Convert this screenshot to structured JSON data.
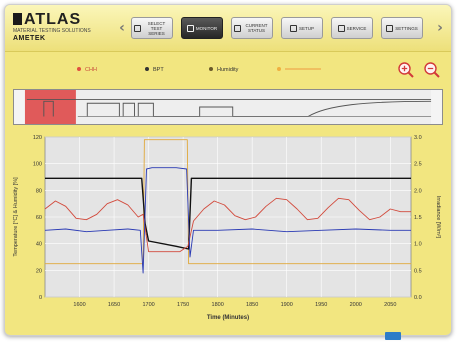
{
  "brand": {
    "name": "ATLAS",
    "tagline": "MATERIAL TESTING SOLUTIONS",
    "parent": "AMETEK"
  },
  "nav": {
    "buttons": [
      {
        "label": "SELECT TEST SERIES",
        "icon": "list-icon",
        "active": false
      },
      {
        "label": "MONITOR",
        "icon": "monitor-icon",
        "active": true
      },
      {
        "label": "CURRENT STATUS",
        "icon": "status-icon",
        "active": false
      },
      {
        "label": "SETUP",
        "icon": "setup-icon",
        "active": false
      },
      {
        "label": "SERVICE",
        "icon": "service-icon",
        "active": false
      },
      {
        "label": "SETTINGS",
        "icon": "settings-icon",
        "active": false
      }
    ]
  },
  "legend": {
    "items": [
      {
        "label": "CHH",
        "color": "#e05040"
      },
      {
        "label": "BPT",
        "color": "#333333"
      },
      {
        "label": "Humidity",
        "color": "#6a5a2a"
      },
      {
        "label": "",
        "color": "#f0b040"
      }
    ]
  },
  "chart_data": {
    "type": "line",
    "xlabel": "Time (Minutes)",
    "ylabel": "Temperature [°C] & Humidity [%]",
    "y2label": "Irradiance [W/m²]",
    "xlim": [
      1550,
      2080
    ],
    "ylim": [
      0,
      120
    ],
    "y2lim": [
      0,
      3.0
    ],
    "xticks": [
      1600,
      1650,
      1700,
      1750,
      1800,
      1850,
      1900,
      1950,
      2000,
      2050
    ],
    "xticklabels": [
      "1600",
      "1650",
      "1700",
      "1750",
      "1800",
      "1850",
      "1900",
      "1950",
      "2000",
      "2050"
    ],
    "yticks": [
      0,
      20,
      40,
      60,
      80,
      100,
      120
    ],
    "y2ticks": [
      0,
      0.5,
      1.0,
      1.5,
      2.0,
      2.5,
      3.0
    ],
    "grid": true,
    "series": [
      {
        "color": "#111111",
        "x": [
          1550,
          1690,
          1695,
          1700,
          1740,
          1758,
          1762,
          2080
        ],
        "y": [
          89,
          89,
          55,
          42,
          38,
          36,
          89,
          89
        ]
      },
      {
        "color": "#d24a3c",
        "x": [
          1550,
          1565,
          1580,
          1595,
          1610,
          1625,
          1640,
          1655,
          1670,
          1685,
          1692,
          1700,
          1745,
          1757,
          1765,
          1780,
          1795,
          1810,
          1825,
          1840,
          1855,
          1870,
          1885,
          1900,
          1915,
          1930,
          1945,
          1960,
          1975,
          1990,
          2005,
          2020,
          2035,
          2050,
          2065,
          2080
        ],
        "y": [
          66,
          72,
          68,
          59,
          58,
          62,
          70,
          73,
          69,
          60,
          62,
          34,
          34,
          38,
          57,
          66,
          72,
          69,
          61,
          58,
          60,
          68,
          74,
          73,
          66,
          58,
          59,
          67,
          74,
          73,
          65,
          58,
          60,
          66,
          64,
          64
        ]
      },
      {
        "color": "#2a3ab4",
        "x": [
          1550,
          1580,
          1610,
          1640,
          1670,
          1688,
          1692,
          1697,
          1705,
          1740,
          1755,
          1760,
          1765,
          1800,
          1850,
          1900,
          1950,
          2000,
          2050,
          2080
        ],
        "y": [
          50,
          51,
          49,
          50,
          51,
          50,
          18,
          96,
          97,
          97,
          96,
          30,
          50,
          50,
          51,
          49,
          50,
          51,
          50,
          50
        ]
      },
      {
        "color": "#e0a83a",
        "x": [
          1550,
          1692,
          1694,
          1756,
          1758,
          2080
        ],
        "y": [
          25,
          25,
          118,
          118,
          25,
          25
        ]
      }
    ]
  },
  "overview_chart": {
    "type": "line",
    "note": ""
  }
}
